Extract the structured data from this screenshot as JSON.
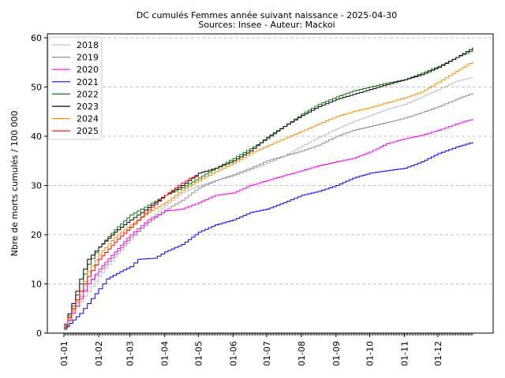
{
  "chart_data": {
    "type": "line",
    "title": "DC cumulés Femmes année suivant naissance  - 2025-04-30",
    "subtitle": "Sources: Insee - Auteur: Mackoi",
    "xlabel": "",
    "ylabel": "Nbre de morts cumulés / 100 000",
    "ylim": [
      0,
      60
    ],
    "yticks": [
      0,
      10,
      20,
      30,
      40,
      50,
      60
    ],
    "xlim": [
      0,
      365
    ],
    "x_tick_labels": [
      "01-01",
      "01-02",
      "01-03",
      "01-04",
      "01-05",
      "01-06",
      "01-07",
      "01-08",
      "01-09",
      "01-10",
      "01-11",
      "01-12"
    ],
    "x_tick_days": [
      0,
      31,
      59,
      90,
      120,
      151,
      181,
      212,
      243,
      273,
      304,
      334
    ],
    "grid": "horizontal dashed",
    "legend_position": "top-left",
    "series": [
      {
        "name": "2018",
        "color": "#c0c0c0",
        "points": [
          [
            0,
            1.2
          ],
          [
            7,
            4.2
          ],
          [
            14,
            6.5
          ],
          [
            21,
            8.5
          ],
          [
            31,
            11.5
          ],
          [
            45,
            15.5
          ],
          [
            59,
            19
          ],
          [
            75,
            23
          ],
          [
            90,
            26
          ],
          [
            105,
            28.5
          ],
          [
            120,
            30
          ],
          [
            135,
            31
          ],
          [
            151,
            32
          ],
          [
            166,
            33.2
          ],
          [
            181,
            34.5
          ],
          [
            196,
            36
          ],
          [
            212,
            38
          ],
          [
            227,
            39.8
          ],
          [
            243,
            41.5
          ],
          [
            258,
            43
          ],
          [
            273,
            44.2
          ],
          [
            288,
            45.5
          ],
          [
            304,
            46.5
          ],
          [
            319,
            48
          ],
          [
            334,
            49.5
          ],
          [
            350,
            51.2
          ],
          [
            365,
            52
          ]
        ]
      },
      {
        "name": "2019",
        "color": "#909090",
        "points": [
          [
            0,
            1.5
          ],
          [
            7,
            4.8
          ],
          [
            14,
            7.5
          ],
          [
            21,
            10
          ],
          [
            31,
            12.5
          ],
          [
            45,
            16
          ],
          [
            59,
            19.5
          ],
          [
            75,
            22.5
          ],
          [
            90,
            25
          ],
          [
            105,
            27
          ],
          [
            120,
            29.5
          ],
          [
            135,
            31
          ],
          [
            151,
            32.2
          ],
          [
            166,
            33.5
          ],
          [
            181,
            35
          ],
          [
            196,
            36
          ],
          [
            212,
            37
          ],
          [
            227,
            38.2
          ],
          [
            243,
            40
          ],
          [
            258,
            41.2
          ],
          [
            273,
            42
          ],
          [
            288,
            42.8
          ],
          [
            304,
            43.7
          ],
          [
            319,
            44.8
          ],
          [
            334,
            46
          ],
          [
            350,
            47.5
          ],
          [
            365,
            48.8
          ]
        ]
      },
      {
        "name": "2020",
        "color": "#ff00ff",
        "points": [
          [
            0,
            1
          ],
          [
            7,
            4
          ],
          [
            14,
            7
          ],
          [
            21,
            10
          ],
          [
            31,
            13
          ],
          [
            45,
            16.5
          ],
          [
            59,
            20
          ],
          [
            75,
            23
          ],
          [
            90,
            24.8
          ],
          [
            105,
            25.2
          ],
          [
            120,
            26.5
          ],
          [
            135,
            28
          ],
          [
            151,
            28.5
          ],
          [
            166,
            30
          ],
          [
            181,
            31
          ],
          [
            196,
            32
          ],
          [
            212,
            33
          ],
          [
            227,
            34
          ],
          [
            243,
            34.8
          ],
          [
            258,
            35.5
          ],
          [
            273,
            36.8
          ],
          [
            288,
            38.5
          ],
          [
            304,
            39.5
          ],
          [
            319,
            40.2
          ],
          [
            334,
            41.2
          ],
          [
            350,
            42.5
          ],
          [
            365,
            43.5
          ]
        ]
      },
      {
        "name": "2021",
        "color": "#0000ff",
        "points": [
          [
            0,
            0.8
          ],
          [
            5,
            2
          ],
          [
            14,
            4
          ],
          [
            21,
            6
          ],
          [
            31,
            9
          ],
          [
            38,
            11
          ],
          [
            50,
            12.5
          ],
          [
            59,
            13.5
          ],
          [
            66,
            15
          ],
          [
            80,
            15.2
          ],
          [
            90,
            16.5
          ],
          [
            105,
            18
          ],
          [
            120,
            20.5
          ],
          [
            135,
            22
          ],
          [
            151,
            23
          ],
          [
            166,
            24.5
          ],
          [
            181,
            25.2
          ],
          [
            196,
            26.5
          ],
          [
            212,
            28
          ],
          [
            227,
            28.8
          ],
          [
            243,
            30
          ],
          [
            258,
            31.5
          ],
          [
            273,
            32.5
          ],
          [
            288,
            33
          ],
          [
            304,
            33.5
          ],
          [
            319,
            34.8
          ],
          [
            334,
            36.5
          ],
          [
            350,
            37.8
          ],
          [
            365,
            38.8
          ]
        ]
      },
      {
        "name": "2022",
        "color": "#008000",
        "points": [
          [
            0,
            1.5
          ],
          [
            7,
            5.5
          ],
          [
            14,
            10
          ],
          [
            21,
            14
          ],
          [
            31,
            17.5
          ],
          [
            45,
            21
          ],
          [
            59,
            24
          ],
          [
            75,
            26
          ],
          [
            90,
            28
          ],
          [
            105,
            29.5
          ],
          [
            120,
            31.5
          ],
          [
            135,
            33.5
          ],
          [
            151,
            35.5
          ],
          [
            166,
            37.5
          ],
          [
            181,
            39.5
          ],
          [
            196,
            42
          ],
          [
            212,
            44.5
          ],
          [
            227,
            46.5
          ],
          [
            243,
            48
          ],
          [
            258,
            49.2
          ],
          [
            273,
            50
          ],
          [
            288,
            50.8
          ],
          [
            304,
            51.5
          ],
          [
            319,
            52.8
          ],
          [
            334,
            54.2
          ],
          [
            350,
            56
          ],
          [
            365,
            57.5
          ]
        ]
      },
      {
        "name": "2023",
        "color": "#000000",
        "points": [
          [
            0,
            1.8
          ],
          [
            7,
            6
          ],
          [
            14,
            11
          ],
          [
            21,
            15
          ],
          [
            31,
            17.5
          ],
          [
            45,
            20.5
          ],
          [
            59,
            23
          ],
          [
            75,
            25.5
          ],
          [
            90,
            28
          ],
          [
            105,
            30
          ],
          [
            120,
            32.5
          ],
          [
            135,
            33.5
          ],
          [
            151,
            35
          ],
          [
            166,
            37
          ],
          [
            181,
            39.8
          ],
          [
            196,
            42
          ],
          [
            212,
            44.2
          ],
          [
            227,
            46
          ],
          [
            243,
            47.5
          ],
          [
            258,
            48.5
          ],
          [
            273,
            49.5
          ],
          [
            288,
            50.5
          ],
          [
            304,
            51.5
          ],
          [
            319,
            52.5
          ],
          [
            334,
            54
          ],
          [
            350,
            56
          ],
          [
            365,
            58
          ]
        ]
      },
      {
        "name": "2024",
        "color": "#ff8c00",
        "points": [
          [
            0,
            1
          ],
          [
            7,
            4.5
          ],
          [
            14,
            8.5
          ],
          [
            21,
            12.5
          ],
          [
            31,
            16
          ],
          [
            45,
            19.5
          ],
          [
            59,
            22
          ],
          [
            75,
            24.5
          ],
          [
            90,
            26.5
          ],
          [
            105,
            29
          ],
          [
            120,
            31
          ],
          [
            135,
            32.8
          ],
          [
            151,
            34.5
          ],
          [
            166,
            36.5
          ],
          [
            181,
            38
          ],
          [
            196,
            39.5
          ],
          [
            212,
            41
          ],
          [
            227,
            42.5
          ],
          [
            243,
            44
          ],
          [
            258,
            45
          ],
          [
            273,
            45.8
          ],
          [
            288,
            46.8
          ],
          [
            304,
            47.8
          ],
          [
            319,
            49
          ],
          [
            334,
            51
          ],
          [
            350,
            53.2
          ],
          [
            365,
            55.2
          ]
        ]
      },
      {
        "name": "2025",
        "color": "#ff0000",
        "points": [
          [
            0,
            1.2
          ],
          [
            7,
            5
          ],
          [
            14,
            8.5
          ],
          [
            21,
            11.5
          ],
          [
            31,
            15
          ],
          [
            45,
            18.5
          ],
          [
            59,
            21.5
          ],
          [
            75,
            25
          ],
          [
            90,
            28
          ],
          [
            105,
            30.5
          ],
          [
            112,
            31.5
          ],
          [
            120,
            32
          ]
        ]
      }
    ]
  }
}
